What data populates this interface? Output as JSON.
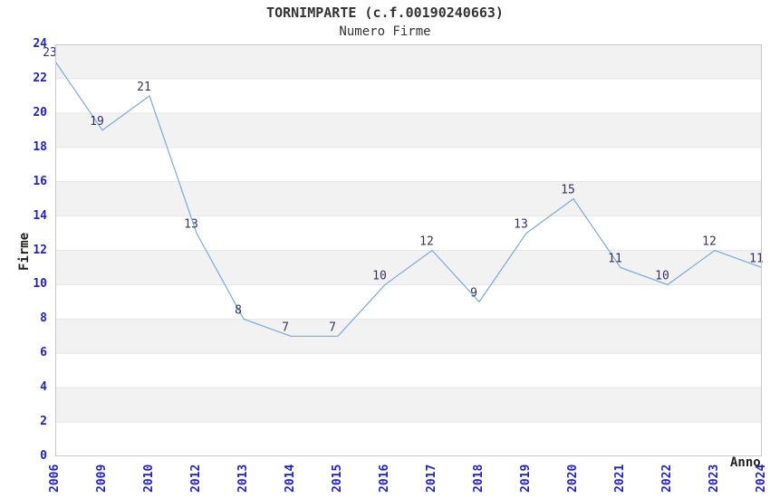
{
  "page": {
    "background": "#ffffff"
  },
  "chart_data": {
    "type": "line",
    "title": "TORNIMPARTE (c.f.00190240663)",
    "subtitle": "Numero Firme",
    "xlabel": "Anno",
    "ylabel": "Firme",
    "categories": [
      "2006",
      "2009",
      "2010",
      "2012",
      "2013",
      "2014",
      "2015",
      "2016",
      "2017",
      "2018",
      "2019",
      "2020",
      "2021",
      "2022",
      "2023",
      "2024"
    ],
    "values": [
      23,
      19,
      21,
      13,
      8,
      7,
      7,
      10,
      12,
      9,
      13,
      15,
      11,
      10,
      12,
      11
    ],
    "ylim": [
      0,
      24
    ],
    "ytick_step": 2,
    "grid": "alternating-horizontal-bands",
    "legend": "none",
    "colors": {
      "line": "#7aaadc",
      "tick_label": "#2222cc",
      "value_label": "#333366",
      "band": "#f2f2f2",
      "grid_line": "#e6e6e6",
      "plot_border": "#c9c9c9",
      "title": "#333333",
      "axis_title": "#222222"
    }
  }
}
